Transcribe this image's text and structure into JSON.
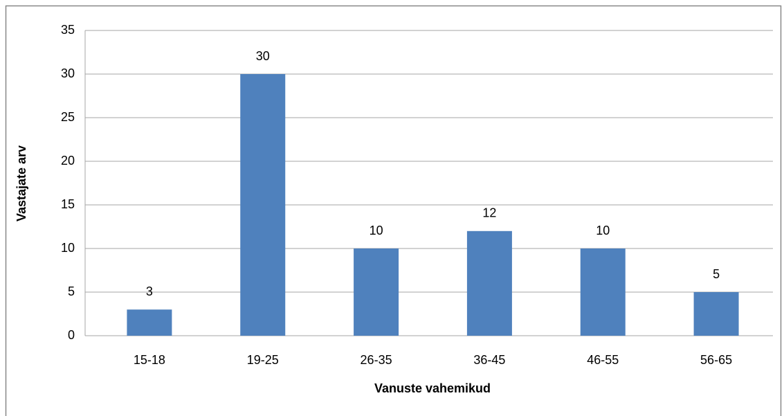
{
  "chart_data": {
    "type": "bar",
    "x_label": "Vanuste vahemikud",
    "y_label": "Vastajate arv",
    "categories": [
      "15-18",
      "19-25",
      "26-35",
      "36-45",
      "46-55",
      "56-65"
    ],
    "values": [
      3,
      30,
      10,
      12,
      10,
      5
    ],
    "color": "#4f81bd",
    "ylim": [
      0,
      35
    ],
    "yticks": [
      0,
      5,
      10,
      15,
      20,
      25,
      30,
      35
    ],
    "grid": true
  }
}
